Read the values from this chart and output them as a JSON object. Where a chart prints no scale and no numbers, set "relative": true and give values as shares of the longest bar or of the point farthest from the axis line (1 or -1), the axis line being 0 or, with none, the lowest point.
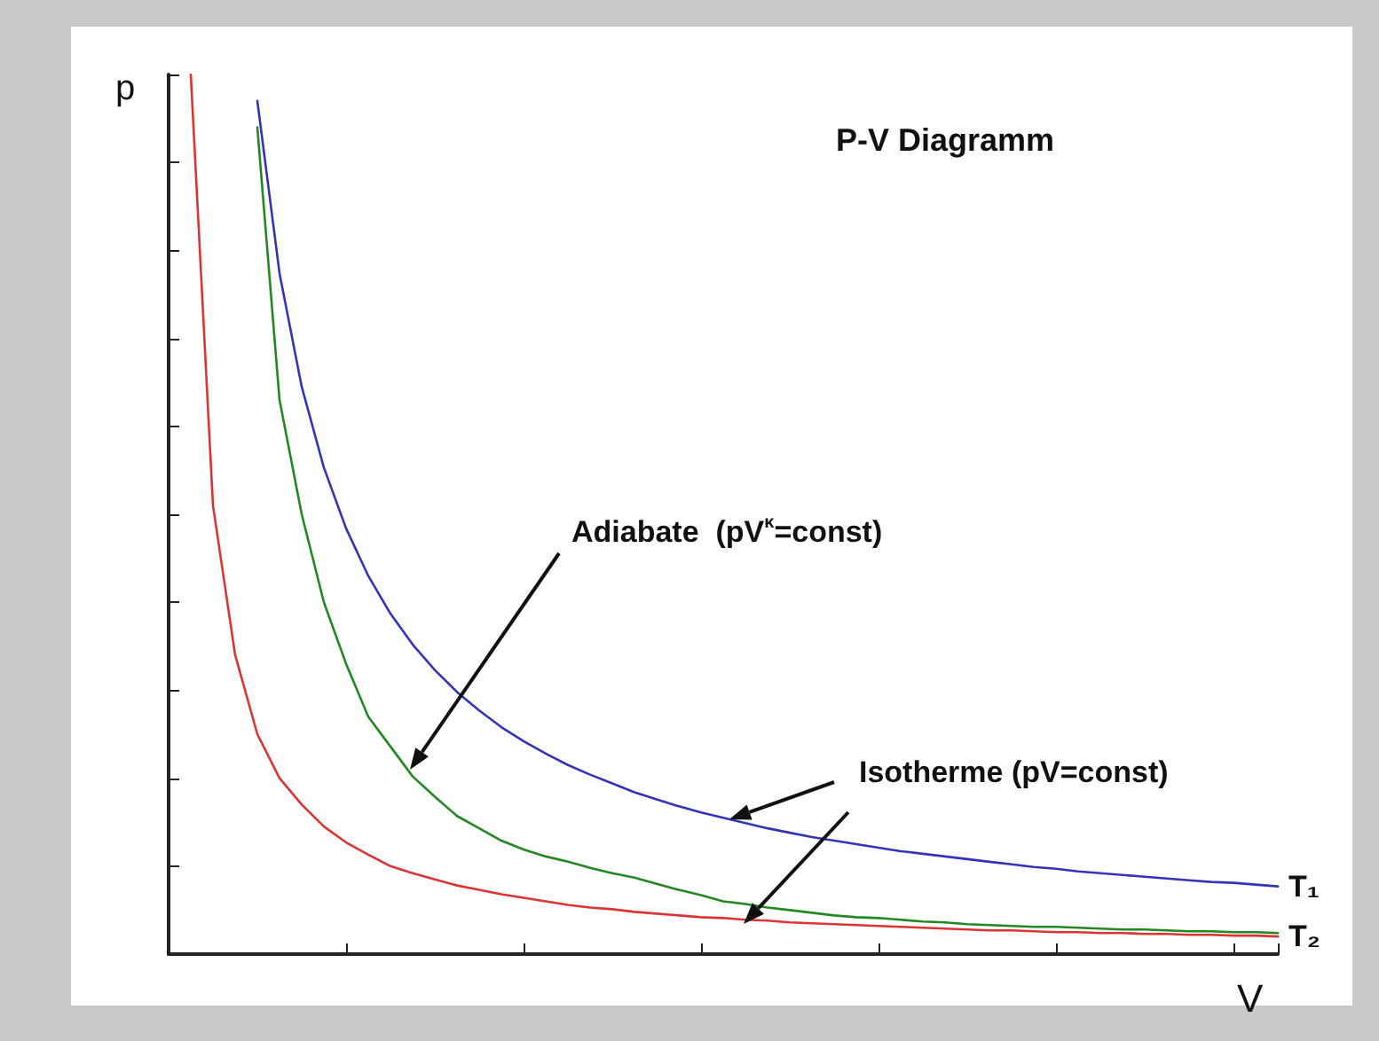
{
  "chart_data": {
    "type": "line",
    "title": "P-V Diagramm",
    "xlabel": "V",
    "ylabel": "p",
    "relative": true,
    "legend": false,
    "grid": false,
    "marker": "none",
    "annotations": [
      "Adiabate  (pV$^{κ}$=const)",
      "Isotherme (pV=const)"
    ],
    "categories": [
      null,
      null,
      null,
      null,
      null,
      null,
      null,
      null,
      null,
      null,
      null,
      null,
      null,
      null,
      null,
      null,
      null,
      null,
      null,
      null,
      null,
      null,
      null,
      null,
      null,
      null,
      null,
      null,
      null,
      null,
      null,
      null,
      null,
      null,
      null,
      null,
      null,
      null,
      null,
      null,
      null,
      null,
      null,
      null,
      null,
      null,
      null,
      null,
      null,
      null,
      null
    ],
    "series": [
      {
        "name": "T₁",
        "color": "#3333bb",
        "values": [
          null,
          null,
          null,
          null,
          0.97,
          0.774,
          0.645,
          0.553,
          0.484,
          0.43,
          0.387,
          0.352,
          0.323,
          0.298,
          0.277,
          0.258,
          0.242,
          0.228,
          0.215,
          0.204,
          0.194,
          0.184,
          0.176,
          0.168,
          0.161,
          0.155,
          0.149,
          0.143,
          0.138,
          0.133,
          0.129,
          0.125,
          0.121,
          0.117,
          0.114,
          0.111,
          0.108,
          0.105,
          0.102,
          0.099,
          0.097,
          0.094,
          0.092,
          0.09,
          0.088,
          0.086,
          0.084,
          0.082,
          0.081,
          0.079,
          0.077
        ]
      },
      {
        "color": "#228822",
        "values": [
          null,
          null,
          null,
          null,
          0.94,
          0.63,
          0.5,
          0.4,
          0.33,
          0.27,
          0.236,
          0.202,
          0.179,
          0.157,
          0.143,
          0.129,
          0.119,
          0.111,
          0.105,
          0.098,
          0.092,
          0.087,
          0.08,
          0.073,
          0.067,
          0.06,
          0.057,
          0.053,
          0.05,
          0.047,
          0.044,
          0.042,
          0.041,
          0.039,
          0.037,
          0.036,
          0.034,
          0.033,
          0.032,
          0.031,
          0.031,
          0.03,
          0.029,
          0.028,
          0.028,
          0.027,
          0.026,
          0.026,
          0.025,
          0.025,
          0.024
        ]
      },
      {
        "name": "T₂",
        "color": "#dd3333",
        "values": [
          null,
          1,
          0.51,
          0.34,
          0.25,
          0.2,
          0.17,
          0.145,
          0.127,
          0.113,
          0.1,
          0.092,
          0.085,
          0.078,
          0.073,
          0.068,
          0.064,
          0.06,
          0.056,
          0.053,
          0.051,
          0.048,
          0.046,
          0.044,
          0.042,
          0.041,
          0.039,
          0.038,
          0.036,
          0.035,
          0.034,
          0.033,
          0.032,
          0.031,
          0.03,
          0.029,
          0.028,
          0.027,
          0.027,
          0.026,
          0.025,
          0.025,
          0.024,
          0.024,
          0.023,
          0.023,
          0.022,
          0.022,
          0.021,
          0.021,
          0.02
        ]
      }
    ]
  }
}
